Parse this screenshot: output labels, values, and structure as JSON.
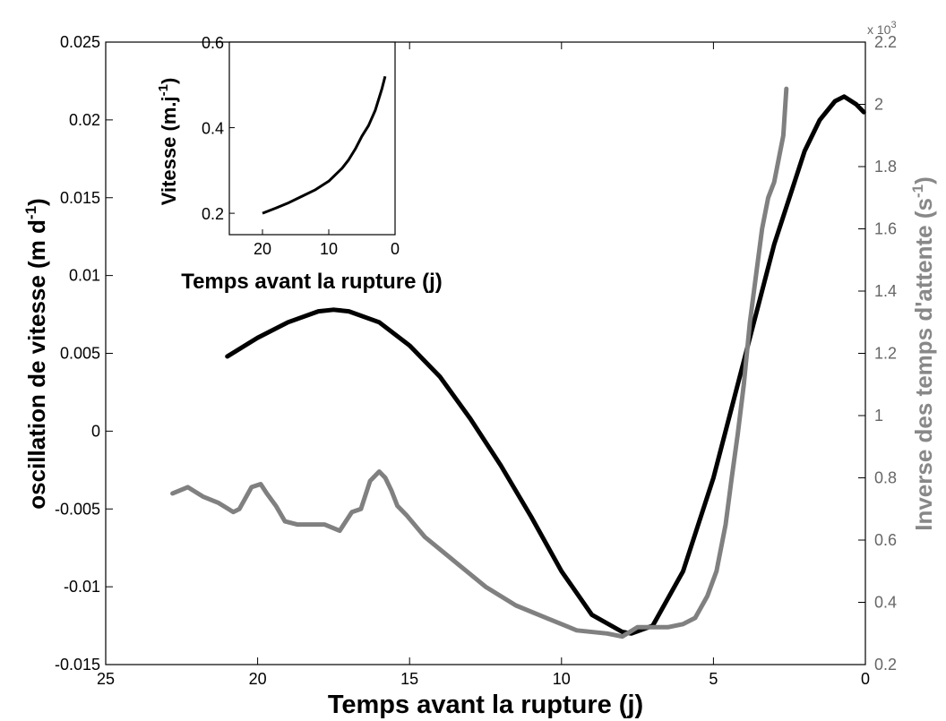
{
  "chart_data": [
    {
      "type": "line",
      "title": "",
      "xlabel": "Temps avant la rupture (j)",
      "ylabel": "oscillation de vitesse (m d-1)",
      "ylabel_right": "Inverse des temps d'attente (s-1)",
      "xlim": [
        25,
        0
      ],
      "x_reversed": true,
      "ylim": [
        -0.015,
        0.025
      ],
      "ylim_right": [
        0.0002,
        0.0022
      ],
      "right_axis_multiplier": "x 10^3",
      "grid": false,
      "x_ticks": [
        "25",
        "20",
        "15",
        "10",
        "5",
        "0"
      ],
      "y_ticks": [
        "-0.015",
        "-0.01",
        "-0.005",
        "0",
        "0.005",
        "0.01",
        "0.015",
        "0.02",
        "0.025"
      ],
      "y_right_ticks": [
        "0.2",
        "0.4",
        "0.6",
        "0.8",
        "1",
        "1.2",
        "1.4",
        "1.6",
        "1.8",
        "2",
        "2.2"
      ],
      "series": [
        {
          "color": "#000000",
          "axis": "left",
          "x": [
            21,
            20,
            19,
            18,
            17.5,
            17,
            16,
            15,
            14,
            13,
            12,
            11,
            10,
            9,
            8,
            7.7,
            7,
            6,
            5,
            4,
            3,
            2,
            1.5,
            1,
            0.7,
            0.3,
            0.05
          ],
          "y": [
            0.0048,
            0.006,
            0.007,
            0.0077,
            0.0078,
            0.0077,
            0.007,
            0.0055,
            0.0035,
            0.0008,
            -0.0022,
            -0.0055,
            -0.009,
            -0.0118,
            -0.0129,
            -0.013,
            -0.0125,
            -0.009,
            -0.003,
            0.0045,
            0.012,
            0.018,
            0.02,
            0.0212,
            0.0215,
            0.021,
            0.0205
          ]
        },
        {
          "color": "#808080",
          "axis": "right",
          "x": [
            22.8,
            22.3,
            21.8,
            21.3,
            20.8,
            20.6,
            20.2,
            19.9,
            19.7,
            19.4,
            19.1,
            18.7,
            18.3,
            17.8,
            17.3,
            17.1,
            16.9,
            16.6,
            16.3,
            16.0,
            15.8,
            15.6,
            15.4,
            15.1,
            14.5,
            13.5,
            12.5,
            11.5,
            10.5,
            9.5,
            8.5,
            8.0,
            7.5,
            7.0,
            6.5,
            6.0,
            5.6,
            5.2,
            4.9,
            4.6,
            4.4,
            4.2,
            4.0,
            3.8,
            3.6,
            3.4,
            3.2,
            3.0,
            2.9,
            2.8,
            2.7,
            2.6
          ],
          "y": [
            0.00075,
            0.00077,
            0.00074,
            0.00072,
            0.00069,
            0.0007,
            0.00077,
            0.00078,
            0.00075,
            0.00071,
            0.00066,
            0.00065,
            0.00065,
            0.00065,
            0.00063,
            0.00066,
            0.00069,
            0.0007,
            0.00079,
            0.00082,
            0.0008,
            0.00076,
            0.00071,
            0.00068,
            0.00061,
            0.00053,
            0.00045,
            0.00039,
            0.00035,
            0.00031,
            0.0003,
            0.00029,
            0.00032,
            0.00032,
            0.00032,
            0.00033,
            0.00035,
            0.00042,
            0.0005,
            0.00065,
            0.0008,
            0.00094,
            0.0011,
            0.0013,
            0.00145,
            0.0016,
            0.0017,
            0.00175,
            0.0018,
            0.00185,
            0.0019,
            0.00205
          ]
        }
      ]
    },
    {
      "type": "line",
      "title": "",
      "xlabel": "Temps avant la rupture (j)",
      "ylabel": "Vitesse (m.j-1)",
      "xlim": [
        25,
        0
      ],
      "x_reversed": true,
      "ylim": [
        0.15,
        0.6
      ],
      "grid": false,
      "x_ticks": [
        "20",
        "10",
        "0"
      ],
      "y_ticks": [
        "0.2",
        "0.4",
        "0.6"
      ],
      "series": [
        {
          "color": "#000000",
          "x": [
            20,
            18,
            16,
            14,
            12,
            10,
            8,
            7,
            6,
            5,
            4,
            3,
            2.5,
            2,
            1.5
          ],
          "y": [
            0.2,
            0.212,
            0.225,
            0.24,
            0.255,
            0.275,
            0.305,
            0.325,
            0.35,
            0.38,
            0.405,
            0.44,
            0.465,
            0.49,
            0.52
          ]
        }
      ]
    }
  ]
}
